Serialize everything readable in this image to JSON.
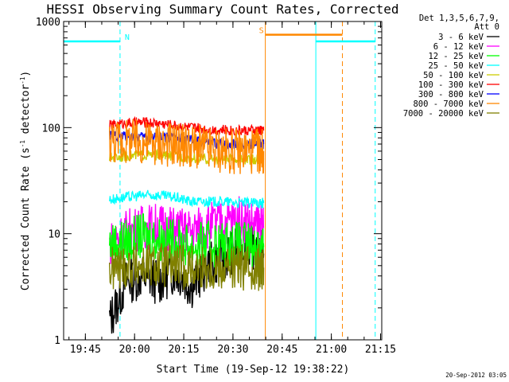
{
  "chart_data": {
    "type": "line",
    "title": "HESSI Observing Summary Count Rates, Corrected",
    "xlabel": "Start Time (19-Sep-12 19:38:22)",
    "ylabel_main": "Corrected Count Rate (s",
    "ylabel_sup1": "-1",
    "ylabel_mid": " detector",
    "ylabel_sup2": "-1",
    "ylabel_end": ")",
    "yscale": "log",
    "ylim": [
      1,
      1000
    ],
    "xlim_minutes": [
      0,
      97
    ],
    "x_ticks": [
      {
        "m": 6.63,
        "label": "19:45"
      },
      {
        "m": 21.63,
        "label": "20:00"
      },
      {
        "m": 36.63,
        "label": "20:15"
      },
      {
        "m": 51.63,
        "label": "20:30"
      },
      {
        "m": 66.63,
        "label": "20:45"
      },
      {
        "m": 81.63,
        "label": "21:00"
      },
      {
        "m": 96.63,
        "label": "21:15"
      }
    ],
    "y_ticks": [
      {
        "v": 1,
        "label": "1"
      },
      {
        "v": 10,
        "label": "10"
      },
      {
        "v": 100,
        "label": "100"
      },
      {
        "v": 1000,
        "label": "1000"
      }
    ],
    "legend_header": [
      "Det 1,3,5,6,7,9,",
      "Att 0"
    ],
    "legend_placement": "right",
    "series": [
      {
        "name": "3 - 6 keV",
        "color": "#000000",
        "x": [
          14,
          19,
          24,
          29,
          34,
          39,
          44,
          49,
          54,
          59,
          61
        ],
        "values": [
          1.5,
          3.5,
          4.0,
          3.5,
          4.5,
          3.2,
          5.0,
          6.0,
          8.0,
          7.5,
          6.5
        ]
      },
      {
        "name": "6 - 12 keV",
        "color": "#ff00ff",
        "x": [
          14,
          19,
          24,
          29,
          34,
          39,
          44,
          49,
          54,
          59,
          61
        ],
        "values": [
          8.0,
          10.5,
          11.5,
          12.0,
          11.0,
          10.5,
          12.0,
          13.0,
          14.0,
          12.0,
          11.5
        ]
      },
      {
        "name": "12 - 25 keV",
        "color": "#00ff00",
        "x": [
          14,
          19,
          24,
          29,
          34,
          39,
          44,
          49,
          54,
          59,
          61
        ],
        "values": [
          8.0,
          8.5,
          9.5,
          9.0,
          8.5,
          7.5,
          8.0,
          8.0,
          8.0,
          7.5,
          7.5
        ]
      },
      {
        "name": "25 - 50 keV",
        "color": "#00ffff",
        "x": [
          14,
          19,
          24,
          29,
          34,
          39,
          44,
          49,
          54,
          59,
          61
        ],
        "values": [
          21,
          22,
          23,
          23,
          22,
          20,
          20,
          20,
          19.5,
          19.5,
          19.5
        ]
      },
      {
        "name": "50 - 100 keV",
        "color": "#cccc00",
        "x": [
          14,
          19,
          24,
          29,
          34,
          39,
          44,
          49,
          54,
          59,
          61
        ],
        "values": [
          52,
          54,
          55,
          55,
          54,
          52,
          50,
          50,
          50,
          50,
          50
        ]
      },
      {
        "name": "100 - 300 keV",
        "color": "#ff0000",
        "x": [
          14,
          19,
          24,
          29,
          34,
          39,
          44,
          49,
          54,
          59,
          61
        ],
        "values": [
          105,
          110,
          112,
          110,
          105,
          100,
          96,
          95,
          94,
          94,
          94
        ]
      },
      {
        "name": "300 - 800 keV",
        "color": "#0000ff",
        "x": [
          14,
          19,
          24,
          29,
          34,
          39,
          44,
          49,
          54,
          59,
          61
        ],
        "values": [
          85,
          84,
          82,
          82,
          80,
          76,
          72,
          70,
          70,
          70,
          70
        ]
      },
      {
        "name": "800 - 7000 keV",
        "color": "#ff8800",
        "x": [
          14,
          19,
          24,
          29,
          34,
          39,
          44,
          49,
          54,
          59,
          61
        ],
        "values": [
          75,
          74,
          72,
          72,
          70,
          66,
          62,
          60,
          60,
          60,
          60
        ]
      },
      {
        "name": "7000 - 20000 keV",
        "color": "#808000",
        "x": [
          14,
          19,
          24,
          29,
          34,
          39,
          44,
          49,
          54,
          59,
          61
        ],
        "values": [
          4.5,
          5.0,
          5.0,
          5.0,
          5.0,
          4.8,
          4.8,
          4.8,
          4.8,
          4.8,
          4.8
        ]
      }
    ],
    "flags": [
      {
        "label": "N",
        "color": "#00ffff",
        "x_start": 0,
        "x_end": 17.2,
        "level": 650
      },
      {
        "label": "S",
        "color": "#ff8800",
        "x_start": 61.5,
        "x_end": 85.0,
        "level": 750
      },
      {
        "label": "",
        "color": "#00ffff",
        "x_start": 76.9,
        "x_end": 95.0,
        "level": 650
      }
    ],
    "boundaries": [
      {
        "m": 0,
        "style": "solid",
        "color": "#00ffff"
      },
      {
        "m": 17.2,
        "style": "dashed",
        "color": "#00ffff"
      },
      {
        "m": 61.5,
        "style": "solid",
        "color": "#ff8800"
      },
      {
        "m": 76.9,
        "style": "solid",
        "color": "#00ffff"
      },
      {
        "m": 85.0,
        "style": "dashed",
        "color": "#ff8800"
      },
      {
        "m": 95.0,
        "style": "dashed",
        "color": "#00ffff"
      }
    ],
    "grid": false
  },
  "footer_date": "20-Sep-2012 03:05"
}
